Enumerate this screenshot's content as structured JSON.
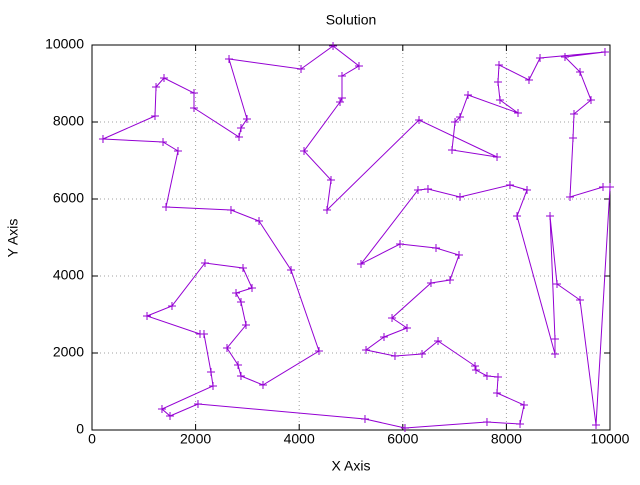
{
  "chart_data": {
    "type": "line",
    "title": "Solution",
    "x_label": "X Axis",
    "y_label": "Y Axis",
    "xlim": [
      0,
      10000
    ],
    "ylim": [
      0,
      10000
    ],
    "xticks": [
      0,
      2000,
      4000,
      6000,
      8000,
      10000
    ],
    "yticks": [
      0,
      2000,
      4000,
      6000,
      8000,
      10000
    ],
    "grid": true,
    "marker": "+",
    "x": [
      212,
      1371,
      1660,
      1429,
      2683,
      3224,
      3842,
      4382,
      3301,
      2876,
      2819,
      2606,
      2973,
      2876,
      2780,
      3089,
      2915,
      2181,
      1544,
      1062,
      2085,
      2162,
      2297,
      2336,
      1351,
      1506,
      2046,
      5270,
      6042,
      7625,
      8263,
      8340,
      7819,
      7838,
      7625,
      7413,
      7394,
      6680,
      6371,
      5849,
      5290,
      5637,
      6081,
      5792,
      6544,
      6911,
      7085,
      6641,
      5946,
      5193,
      6293,
      6486,
      7104,
      8069,
      8398,
      8205,
      8938,
      8938,
      8842,
      8977,
      9421,
      9730,
      10000,
      9865,
      9228,
      9286,
      9305,
      9633,
      9421,
      9131,
      9903,
      8649,
      8436,
      7857,
      7838,
      7876,
      8224,
      7259,
      7104,
      7008,
      6950,
      7819,
      6313,
      4537,
      4614,
      4093,
      4788,
      4826,
      4826,
      5154,
      4653,
      4035,
      2645,
      2992,
      2876,
      2838,
      1969,
      1969,
      1390,
      1236,
      1216,
      212
    ],
    "series": [
      {
        "color": "#9400d3",
        "values": [
          7558,
          7481,
          7247,
          5792,
          5714,
          5429,
          4156,
          2052,
          1169,
          1403,
          1688,
          2130,
          2727,
          3325,
          3558,
          3688,
          4208,
          4338,
          3221,
          2961,
          2494,
          2494,
          1506,
          1143,
          545,
          364,
          675,
          286,
          52,
          208,
          156,
          649,
          961,
          1377,
          1403,
          1558,
          1662,
          2312,
          1974,
          1922,
          2078,
          2416,
          2649,
          2909,
          3818,
          3896,
          4545,
          4727,
          4831,
          4312,
          6234,
          6260,
          6052,
          6364,
          6234,
          5558,
          1974,
          2364,
          5558,
          3792,
          3377,
          130,
          6312,
          6312,
          6052,
          7584,
          8208,
          8571,
          9299,
          9688,
          9818,
          9662,
          9091,
          9481,
          9039,
          8571,
          8234,
          8701,
          8130,
          8000,
          7273,
          7091,
          8052,
          5714,
          6494,
          7247,
          8519,
          8623,
          9195,
          9455,
          9974,
          9377,
          9636,
          8078,
          7844,
          7610,
          8364,
          8753,
          9143,
          8909,
          8156,
          7558
        ]
      }
    ]
  }
}
